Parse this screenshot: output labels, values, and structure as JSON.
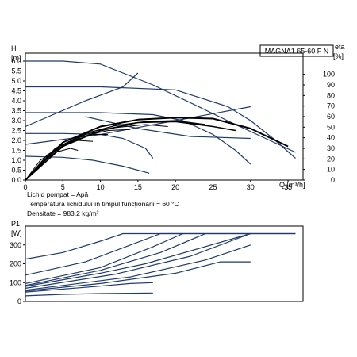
{
  "chart_data": [
    {
      "type": "line",
      "title": "MAGNA1 65-60 F N",
      "ylabel_unit": "H\n[m]",
      "xlabel": "Q [m³/h]",
      "y2label_unit": "eta\n[%]",
      "xlim": [
        0,
        37
      ],
      "ylim": [
        0,
        6.4
      ],
      "y2lim": [
        0,
        120
      ],
      "xticks": [
        "0",
        "5",
        "10",
        "15",
        "20",
        "25",
        "30",
        "35"
      ],
      "yticks": [
        "0.0",
        "0.5",
        "1.0",
        "1.5",
        "2.0",
        "2.5",
        "3.0",
        "3.5",
        "4.0",
        "4.5",
        "5.0",
        "5.5",
        "6.0"
      ],
      "y2ticks": [
        "0",
        "10",
        "20",
        "30",
        "40",
        "50",
        "60",
        "70",
        "80",
        "90",
        "100"
      ],
      "notes": [
        "Lichid pompat = Apă",
        "Temperatura lichidului în timpul funcţionării = 60 °C",
        "Densitate = 983.2 kg/m³"
      ],
      "series": [
        {
          "group": "H",
          "color": "#1f3a6e",
          "width": 1.2,
          "x": [
            0,
            5,
            10,
            13,
            17,
            22,
            28,
            36
          ],
          "y": [
            6.0,
            6.0,
            5.85,
            5.4,
            4.8,
            3.9,
            2.8,
            1.4
          ]
        },
        {
          "group": "H",
          "color": "#1f3a6e",
          "width": 1.2,
          "x": [
            0,
            10,
            20,
            27,
            30,
            33,
            36
          ],
          "y": [
            4.7,
            4.7,
            4.55,
            3.7,
            3.0,
            2.1,
            1.1
          ]
        },
        {
          "group": "H",
          "color": "#1f3a6e",
          "width": 1.2,
          "x": [
            0,
            10,
            17,
            21,
            25,
            28,
            30
          ],
          "y": [
            3.4,
            3.4,
            3.3,
            3.0,
            2.3,
            1.5,
            0.8
          ]
        },
        {
          "group": "H",
          "color": "#1f3a6e",
          "width": 1.2,
          "x": [
            0,
            5,
            10,
            13,
            16,
            17
          ],
          "y": [
            2.35,
            2.35,
            2.3,
            2.1,
            1.6,
            1.1
          ]
        },
        {
          "group": "H",
          "color": "#1f3a6e",
          "width": 1.2,
          "x": [
            0,
            5,
            9,
            13,
            16.5
          ],
          "y": [
            1.2,
            1.15,
            1.0,
            0.7,
            0.35
          ]
        },
        {
          "group": "H",
          "color": "#1f3a6e",
          "width": 1.2,
          "x": [
            0,
            8,
            13,
            15
          ],
          "y": [
            2.7,
            4.0,
            4.7,
            5.4
          ]
        },
        {
          "group": "H",
          "color": "#1f3a6e",
          "width": 1.2,
          "x": [
            0,
            10,
            20,
            30
          ],
          "y": [
            1.8,
            2.3,
            3.0,
            3.7
          ]
        },
        {
          "group": "H",
          "color": "#1f3a6e",
          "width": 1.2,
          "x": [
            8,
            15,
            22,
            30
          ],
          "y": [
            3.2,
            2.6,
            2.2,
            2.1
          ]
        },
        {
          "group": "eta",
          "color": "#000000",
          "width": 2.0,
          "x": [
            0,
            5,
            10,
            15,
            20,
            25,
            30,
            35
          ],
          "y": [
            0,
            1.9,
            2.7,
            3.05,
            3.15,
            3.1,
            2.6,
            1.7
          ]
        },
        {
          "group": "eta",
          "color": "#000000",
          "width": 1.6,
          "x": [
            0,
            5,
            10,
            15,
            20,
            25,
            28
          ],
          "y": [
            0,
            1.7,
            2.5,
            2.9,
            2.95,
            2.7,
            2.5
          ]
        },
        {
          "group": "eta",
          "color": "#000000",
          "width": 1.3,
          "x": [
            0,
            4,
            8,
            12,
            16,
            20,
            24
          ],
          "y": [
            0,
            1.6,
            2.35,
            2.75,
            2.95,
            3.0,
            2.8
          ]
        },
        {
          "group": "eta",
          "color": "#000000",
          "width": 1.1,
          "x": [
            0,
            4,
            8,
            12,
            16,
            19
          ],
          "y": [
            0,
            1.5,
            2.3,
            2.65,
            2.8,
            2.7
          ]
        },
        {
          "group": "eta",
          "color": "#000000",
          "width": 1.0,
          "x": [
            0,
            3,
            7,
            11,
            14
          ],
          "y": [
            0,
            1.3,
            2.15,
            2.5,
            2.55
          ]
        },
        {
          "group": "eta",
          "color": "#000000",
          "width": 1.0,
          "x": [
            0,
            3,
            6,
            9,
            11
          ],
          "y": [
            0,
            1.2,
            1.95,
            2.3,
            2.3
          ]
        },
        {
          "group": "eta",
          "color": "#000000",
          "width": 1.0,
          "x": [
            0,
            2,
            5,
            7,
            9
          ],
          "y": [
            0,
            1.0,
            1.75,
            2.0,
            1.95
          ]
        },
        {
          "group": "eta",
          "color": "#000000",
          "width": 1.0,
          "x": [
            0,
            2,
            4,
            6,
            7
          ],
          "y": [
            0,
            0.8,
            1.4,
            1.6,
            1.5
          ]
        }
      ]
    },
    {
      "type": "line",
      "ylabel_unit": "P1\n[W]",
      "xlim": [
        0,
        37
      ],
      "ylim": [
        0,
        400
      ],
      "yticks": [
        "0",
        "100",
        "200",
        "300"
      ],
      "series": [
        {
          "color": "#1f3a6e",
          "width": 1.2,
          "x": [
            0,
            5,
            10,
            13,
            36
          ],
          "y": [
            225,
            260,
            320,
            360,
            360
          ]
        },
        {
          "color": "#1f3a6e",
          "width": 1.2,
          "x": [
            0,
            8,
            14,
            18,
            36
          ],
          "y": [
            140,
            210,
            300,
            360,
            360
          ]
        },
        {
          "color": "#1f3a6e",
          "width": 1.2,
          "x": [
            0,
            10,
            17,
            21
          ],
          "y": [
            95,
            180,
            290,
            360
          ]
        },
        {
          "color": "#1f3a6e",
          "width": 1.2,
          "x": [
            0,
            10,
            18,
            24
          ],
          "y": [
            85,
            165,
            260,
            360
          ]
        },
        {
          "color": "#1f3a6e",
          "width": 1.2,
          "x": [
            0,
            12,
            22,
            30
          ],
          "y": [
            70,
            145,
            240,
            360
          ]
        },
        {
          "color": "#1f3a6e",
          "width": 1.2,
          "x": [
            0,
            14,
            24,
            30
          ],
          "y": [
            60,
            130,
            220,
            300
          ]
        },
        {
          "color": "#1f3a6e",
          "width": 1.2,
          "x": [
            0,
            10,
            20,
            26,
            30
          ],
          "y": [
            55,
            95,
            150,
            210,
            210
          ]
        },
        {
          "color": "#1f3a6e",
          "width": 1.2,
          "x": [
            0,
            8,
            14,
            17
          ],
          "y": [
            50,
            75,
            95,
            100
          ]
        },
        {
          "color": "#1f3a6e",
          "width": 1.2,
          "x": [
            0,
            5,
            10,
            17
          ],
          "y": [
            30,
            38,
            42,
            45
          ]
        },
        {
          "color": "#1f3a6e",
          "width": 1.2,
          "x": [
            0,
            10,
            16,
            30
          ],
          "y": [
            80,
            150,
            200,
            360
          ]
        }
      ]
    }
  ]
}
